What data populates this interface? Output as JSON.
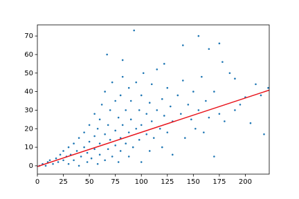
{
  "chart_data": {
    "type": "scatter",
    "xlim": [
      0,
      223
    ],
    "ylim": [
      -4.5,
      76
    ],
    "xticks": [
      0,
      25,
      50,
      75,
      100,
      125,
      150,
      175,
      200
    ],
    "yticks": [
      0,
      10,
      20,
      30,
      40,
      50,
      60,
      70
    ],
    "series": [
      {
        "type": "scatter",
        "color": "#1f77b4",
        "x": [
          2,
          5,
          8,
          10,
          12,
          15,
          18,
          20,
          22,
          25,
          25,
          28,
          30,
          30,
          32,
          35,
          35,
          38,
          40,
          40,
          42,
          45,
          45,
          48,
          48,
          50,
          50,
          52,
          55,
          55,
          55,
          58,
          58,
          60,
          60,
          60,
          62,
          65,
          65,
          65,
          68,
          68,
          70,
          70,
          72,
          72,
          75,
          75,
          75,
          78,
          78,
          80,
          80,
          80,
          82,
          82,
          85,
          85,
          88,
          88,
          88,
          90,
          90,
          92,
          95,
          95,
          98,
          98,
          100,
          100,
          100,
          102,
          105,
          105,
          108,
          108,
          110,
          110,
          112,
          115,
          115,
          118,
          120,
          120,
          122,
          125,
          125,
          128,
          130,
          130,
          135,
          138,
          140,
          142,
          145,
          148,
          150,
          152,
          155,
          158,
          160,
          162,
          165,
          170,
          170,
          175,
          180,
          185,
          190,
          195,
          200,
          205,
          210,
          215,
          218,
          222,
          93,
          155,
          175,
          140,
          67,
          165,
          82,
          122,
          178,
          190
        ],
        "values": [
          0,
          1,
          0,
          2,
          3,
          1,
          4,
          2,
          6,
          3,
          8,
          5,
          1,
          10,
          6,
          3,
          12,
          8,
          0,
          15,
          5,
          10,
          18,
          2,
          7,
          13,
          22,
          4,
          9,
          16,
          28,
          1,
          20,
          6,
          12,
          25,
          33,
          3,
          17,
          40,
          9,
          22,
          14,
          30,
          5,
          45,
          11,
          19,
          35,
          2,
          26,
          8,
          15,
          38,
          22,
          48,
          12,
          30,
          5,
          18,
          42,
          25,
          35,
          10,
          20,
          45,
          14,
          30,
          2,
          22,
          38,
          50,
          17,
          28,
          8,
          34,
          24,
          44,
          15,
          30,
          52,
          20,
          10,
          36,
          27,
          42,
          18,
          32,
          6,
          24,
          38,
          28,
          46,
          15,
          33,
          25,
          40,
          20,
          30,
          48,
          18,
          35,
          26,
          5,
          40,
          28,
          24,
          50,
          30,
          33,
          37,
          23,
          44,
          38,
          17,
          42,
          73,
          70,
          66,
          65,
          60,
          63,
          57,
          55,
          56,
          47
        ]
      },
      {
        "type": "line",
        "color": "#e8141c",
        "x": [
          0,
          223
        ],
        "values": [
          -0.4,
          40.8
        ]
      }
    ]
  }
}
